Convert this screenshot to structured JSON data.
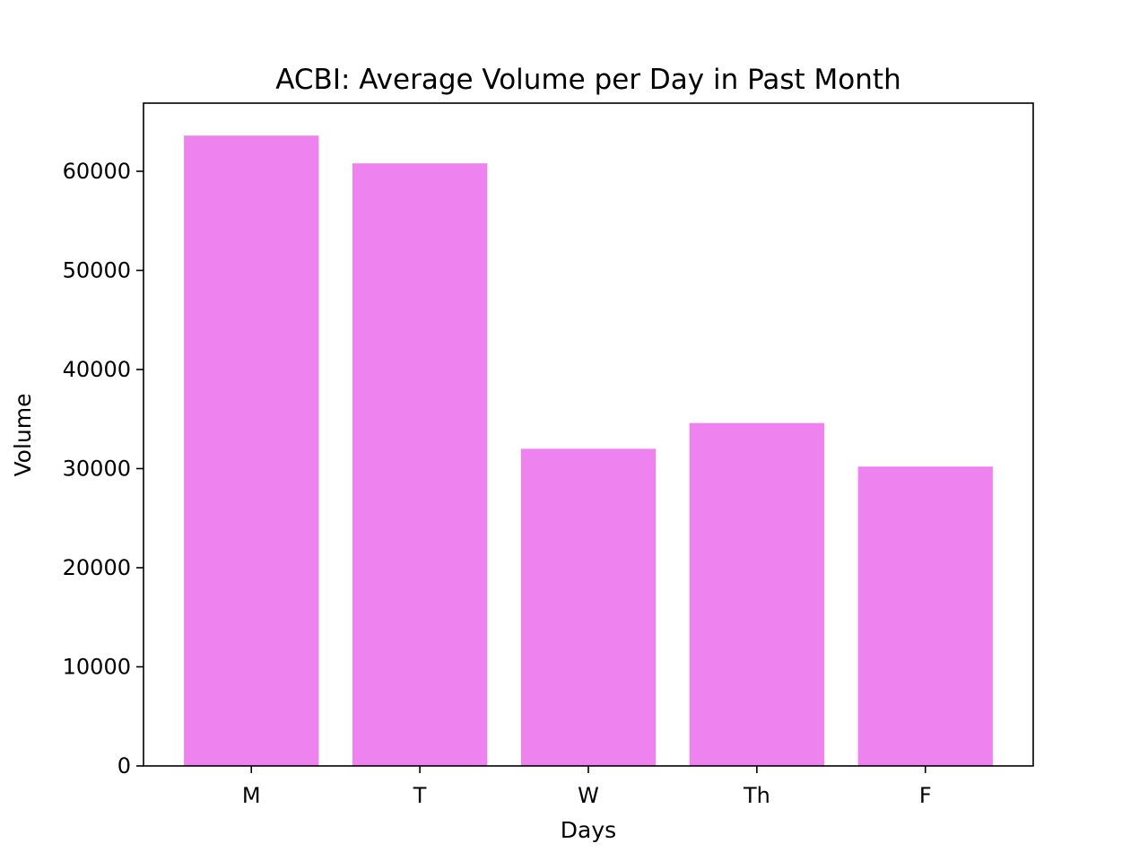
{
  "chart_data": {
    "type": "bar",
    "title": "ACBI: Average Volume per Day in Past Month",
    "xlabel": "Days",
    "ylabel": "Volume",
    "categories": [
      "M",
      "T",
      "W",
      "Th",
      "F"
    ],
    "values": [
      63600,
      60800,
      32000,
      34600,
      30200
    ],
    "ylim": [
      0,
      66875
    ],
    "yticks": [
      0,
      10000,
      20000,
      30000,
      40000,
      50000,
      60000
    ],
    "ytick_labels": [
      "0",
      "10000",
      "20000",
      "30000",
      "40000",
      "50000",
      "60000"
    ],
    "bar_color": "#ee82ee",
    "grid": false,
    "legend": "none"
  }
}
